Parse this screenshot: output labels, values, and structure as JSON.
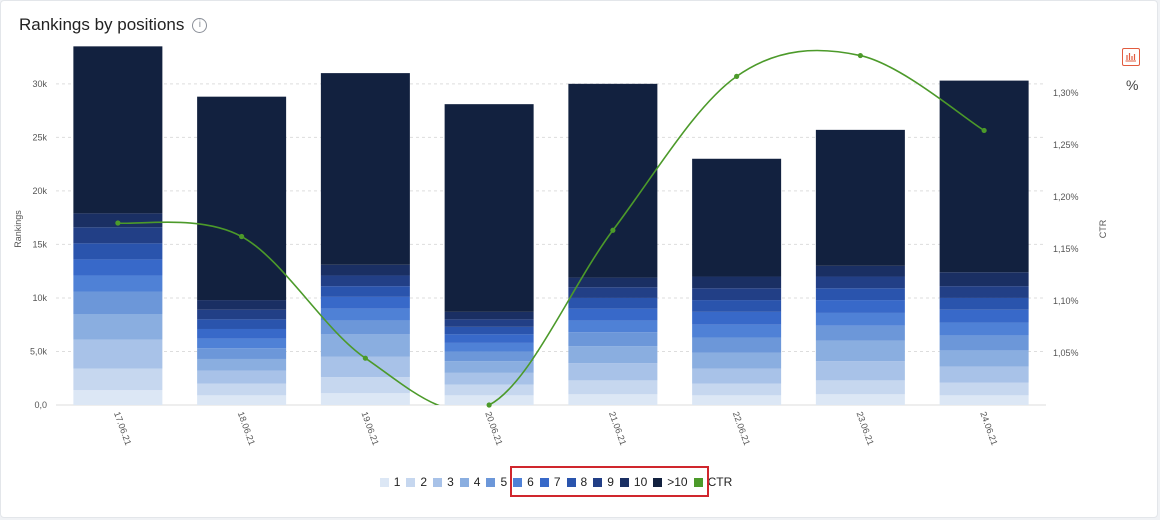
{
  "header": {
    "title": "Rankings by positions",
    "info_icon": "info-icon",
    "chart_type_icon": "bar-chart-icon",
    "percent_toggle": "%"
  },
  "colors": {
    "positions": [
      "#dce7f5",
      "#c6d7ef",
      "#a8c2e8",
      "#8aaee0",
      "#6c97d9",
      "#4f81d6",
      "#3869c9",
      "#2a54ad",
      "#223f86",
      "#1a2f63",
      "#12213f"
    ],
    "ctr": "#4c9a2a"
  },
  "chart_data": {
    "type": "bar",
    "stacked": true,
    "categories": [
      "17.06.21",
      "18.06.21",
      "19.06.21",
      "20.06.21",
      "21.06.21",
      "22.06.21",
      "23.06.21",
      "24.06.21"
    ],
    "ylabel": "Rankings",
    "y2label": "CTR",
    "ylim": [
      0,
      34000
    ],
    "y2lim": [
      1.0,
      1.35
    ],
    "y_ticks": [
      0,
      5000,
      10000,
      15000,
      20000,
      25000,
      30000
    ],
    "y_tick_labels": [
      "0,0",
      "5,0k",
      "10k",
      "15k",
      "20k",
      "25k",
      "30k"
    ],
    "y2_ticks": [
      1.05,
      1.1,
      1.15,
      1.2,
      1.25,
      1.3
    ],
    "y2_tick_labels": [
      "1,05%",
      "1,10%",
      "1,15%",
      "1,20%",
      "1,25%",
      "1,30%"
    ],
    "grid": true,
    "legend_position": "bottom",
    "series": [
      {
        "name": "1",
        "values": [
          1400,
          900,
          1100,
          900,
          1000,
          900,
          1000,
          900
        ]
      },
      {
        "name": "2",
        "values": [
          2000,
          1100,
          1500,
          1000,
          1300,
          1100,
          1300,
          1200
        ]
      },
      {
        "name": "3",
        "values": [
          2700,
          1200,
          1900,
          1100,
          1600,
          1400,
          1800,
          1500
        ]
      },
      {
        "name": "4",
        "values": [
          2400,
          1100,
          2100,
          1100,
          1600,
          1500,
          1900,
          1500
        ]
      },
      {
        "name": "5",
        "values": [
          2100,
          1000,
          1300,
          900,
          1300,
          1400,
          1400,
          1400
        ]
      },
      {
        "name": "6",
        "values": [
          1500,
          900,
          1100,
          800,
          1100,
          1200,
          1200,
          1200
        ]
      },
      {
        "name": "7",
        "values": [
          1500,
          900,
          1100,
          800,
          1100,
          1200,
          1200,
          1200
        ]
      },
      {
        "name": "8",
        "values": [
          1500,
          900,
          1000,
          700,
          1000,
          1100,
          1100,
          1100
        ]
      },
      {
        "name": "9",
        "values": [
          1500,
          900,
          1000,
          700,
          1000,
          1100,
          1100,
          1100
        ]
      },
      {
        "name": "10",
        "values": [
          1300,
          900,
          1000,
          700,
          900,
          1100,
          1000,
          1300
        ]
      },
      {
        "name": ">10",
        "values": [
          15600,
          19000,
          17900,
          19400,
          18100,
          11000,
          12700,
          17900
        ]
      }
    ],
    "ctr": {
      "name": "CTR",
      "values": [
        1.175,
        1.162,
        1.045,
        1.0,
        1.168,
        1.316,
        1.336,
        1.264
      ]
    }
  },
  "legend": {
    "items": [
      "1",
      "2",
      "3",
      "4",
      "5",
      "6",
      "7",
      "8",
      "9",
      "10",
      ">10",
      "CTR"
    ]
  }
}
